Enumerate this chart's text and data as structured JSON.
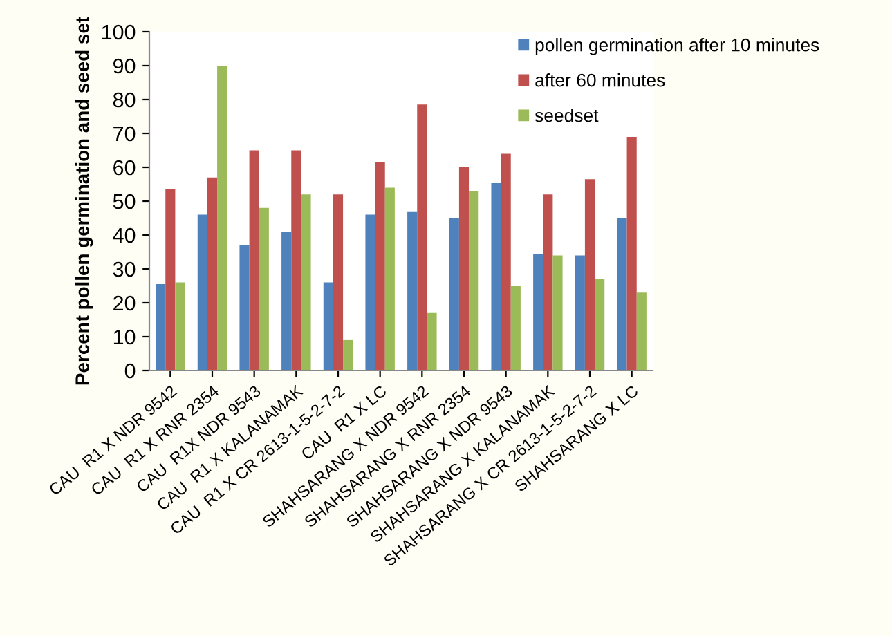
{
  "chart_data": {
    "type": "bar",
    "ylabel": "Percent pollen germination and seed set",
    "categories": [
      "CAU  R1 X NDR 9542",
      "CAU  R1 X RNR 2354",
      "CAU  R1X NDR 9543",
      "CAU  R1 X KALANAMAK",
      "CAU  R1 X CR 2613-1-5-2-7-2",
      "CAU  R1 X LC",
      "SHAHSARANG X NDR 9542",
      "SHAHSARANG X RNR 2354",
      "SHAHSARANG X NDR 9543",
      "SHAHSARANG X KALANAMAK",
      "SHAHSARANG X CR 2613-1-5-2-7-2",
      "SHAHSARANG X LC"
    ],
    "series": [
      {
        "name": "pollen germination after 10 minutes",
        "color": "#4f81bd",
        "values": [
          25.5,
          46,
          37,
          41,
          26,
          46,
          47,
          45,
          55.5,
          34.5,
          34,
          45
        ]
      },
      {
        "name": "after 60 minutes",
        "color": "#c0504d",
        "values": [
          53.5,
          57,
          65,
          65,
          52,
          61.5,
          78.5,
          60,
          64,
          52,
          56.5,
          69
        ]
      },
      {
        "name": "seedset",
        "color": "#9bbb59",
        "values": [
          26,
          90,
          48,
          52,
          9,
          54,
          17,
          53,
          25,
          34,
          27,
          23
        ]
      }
    ],
    "ylim": [
      0,
      100
    ],
    "yticks": [
      0,
      10,
      20,
      30,
      40,
      50,
      60,
      70,
      80,
      90,
      100
    ],
    "grid": false,
    "legend": "top right"
  }
}
